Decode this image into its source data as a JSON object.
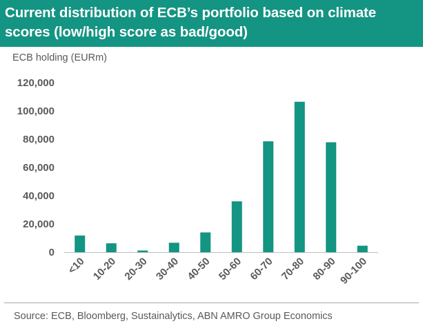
{
  "title": "Current distribution of ECB’s portfolio based on climate scores (low/high score as bad/good)",
  "source": "Source: ECB, Bloomberg, Sustainalytics, ABN AMRO Group Economics",
  "colors": {
    "header": "#149482",
    "bar": "#149482",
    "text": "#595959",
    "axis": "#bfbfbf"
  },
  "chart_data": {
    "type": "bar",
    "title": "Current distribution of ECB’s portfolio based on climate scores (low/high score as bad/good)",
    "ylabel": "ECB holding (EURm)",
    "xlabel": "",
    "categories": [
      "<10",
      "10-20",
      "20-30",
      "30-40",
      "40-50",
      "50-60",
      "60-70",
      "70-80",
      "80-90",
      "90-100"
    ],
    "values": [
      11800,
      6300,
      1200,
      6700,
      14000,
      36000,
      78500,
      106500,
      77800,
      4600
    ],
    "ylim": [
      0,
      120000
    ],
    "yticks": [
      0,
      20000,
      40000,
      60000,
      80000,
      100000,
      120000
    ],
    "ytick_labels": [
      "0",
      "20,000",
      "40,000",
      "60,000",
      "80,000",
      "100,000",
      "120,000"
    ],
    "grid": false,
    "legend": "none"
  }
}
